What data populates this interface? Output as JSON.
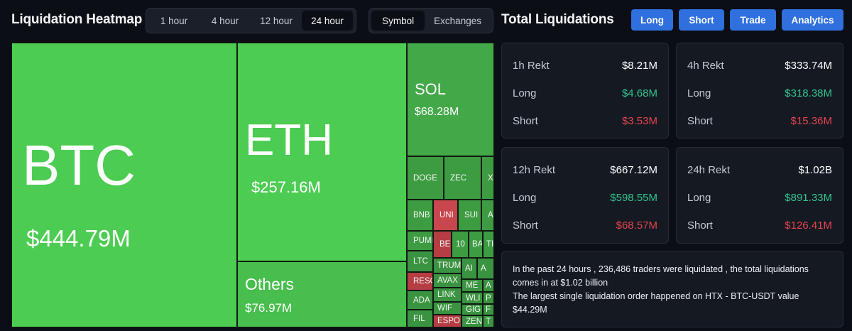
{
  "header": {
    "title": "Liquidation Heatmap",
    "time_options": [
      "1 hour",
      "4 hour",
      "12 hour",
      "24 hour"
    ],
    "time_selected": "24 hour",
    "view_options": [
      "Symbol",
      "Exchanges"
    ],
    "view_selected": "Symbol",
    "total_title": "Total Liquidations",
    "buttons": [
      "Long",
      "Short",
      "Trade",
      "Analytics"
    ],
    "button_color": "#2f6fde"
  },
  "heatmap": {
    "btc": {
      "symbol": "BTC",
      "value": "$444.79M"
    },
    "eth": {
      "symbol": "ETH",
      "value": "$257.16M"
    },
    "others": {
      "symbol": "Others",
      "value": "$76.97M"
    },
    "sol": {
      "symbol": "SOL",
      "value": "$68.28M"
    },
    "small": [
      "DOGE",
      "ZEC",
      "XRP",
      "BNB",
      "UNI",
      "SUI",
      "A",
      "PUMP",
      "BE",
      "10",
      "BA",
      "TI",
      "LTC",
      "TRUM",
      "AI",
      "A",
      "RESO",
      "AVAX",
      "ME",
      "A",
      "LINK",
      "WLI",
      "P",
      "ADA",
      "WIF",
      "GIG",
      "F",
      "FIL",
      "ESPO",
      "ZEN",
      "T"
    ],
    "colors": {
      "up": "#4ccc52",
      "down": "#c8464d"
    }
  },
  "cards": [
    {
      "period": "1h Rekt",
      "total": "$8.21M",
      "long_label": "Long",
      "long": "$4.68M",
      "short_label": "Short",
      "short": "$3.53M"
    },
    {
      "period": "4h Rekt",
      "total": "$333.74M",
      "long_label": "Long",
      "long": "$318.38M",
      "short_label": "Short",
      "short": "$15.36M"
    },
    {
      "period": "12h Rekt",
      "total": "$667.12M",
      "long_label": "Long",
      "long": "$598.55M",
      "short_label": "Short",
      "short": "$68.57M"
    },
    {
      "period": "24h Rekt",
      "total": "$1.02B",
      "long_label": "Long",
      "long": "$891.33M",
      "short_label": "Short",
      "short": "$126.41M"
    }
  ],
  "summary": {
    "line1": "In the past 24 hours , 236,486 traders were liquidated , the total liquidations comes in at $1.02 billion",
    "line2": "The largest single liquidation order happened on HTX - BTC-USDT value $44.29M"
  }
}
